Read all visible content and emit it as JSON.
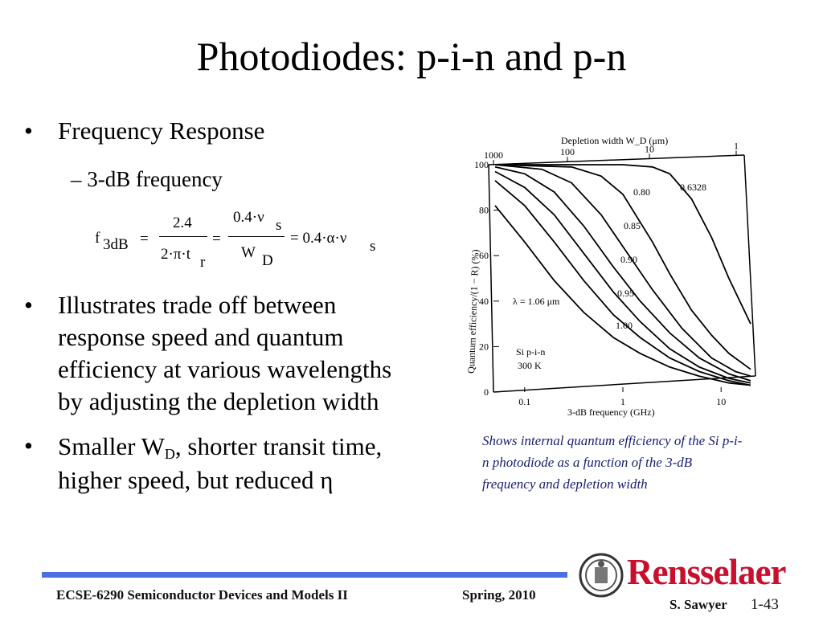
{
  "slide": {
    "title": "Photodiodes: p-i-n and p-n",
    "bullet_symbol": "•",
    "bullet1": "Frequency Response",
    "sub_dash": "–",
    "sub1": "3-dB frequency",
    "bullet2_lines": [
      "Illustrates trade off between",
      "response speed and quantum",
      "efficiency at various wavelengths",
      "by adjusting the depletion width"
    ],
    "bullet3_prefix": "Smaller W",
    "bullet3_sub": "D",
    "bullet3_line1_suffix": ", shorter transit time,",
    "bullet3_line2": "higher speed, but reduced η"
  },
  "equation": {
    "f": "f",
    "f_sub": "3dB",
    "eq1": "=",
    "num1": "2.4",
    "den1": "2·π·t",
    "den1_sub": "r",
    "eq2": "=",
    "num2": "0.4·ν",
    "num2_sub": "s",
    "den2": "W",
    "den2_sub": "D",
    "eq3": "= 0.4·α·ν",
    "eq3_sub": "s"
  },
  "caption": "Shows internal quantum efficiency of the Si p-i-n photodiode as a function of the 3-dB frequency and depletion width",
  "chart_data": {
    "type": "line",
    "xlabel": "3-dB frequency (GHz)",
    "ylabel": "Quantum efficiency/(1 − R) (%)",
    "top_axis_label": "Depletion width W_D (μm)",
    "x_scale": "log",
    "xlim": [
      0.05,
      20
    ],
    "ylim": [
      0,
      100
    ],
    "x_ticks": [
      "0.1",
      "1",
      "10"
    ],
    "y_ticks": [
      "0",
      "20",
      "40",
      "60",
      "80",
      "100"
    ],
    "top_ticks": [
      "1000",
      "100",
      "10",
      "1"
    ],
    "annotations": [
      "λ = 1.06 μm",
      "Si p-i-n",
      "300 K"
    ],
    "series": [
      {
        "name": "0.6328",
        "x": [
          0.05,
          1,
          2,
          3,
          5,
          8,
          12,
          20
        ],
        "y": [
          100,
          100,
          99,
          96,
          85,
          68,
          50,
          30
        ]
      },
      {
        "name": "0.80",
        "x": [
          0.05,
          0.3,
          0.6,
          1,
          2,
          3,
          5,
          8,
          12,
          20
        ],
        "y": [
          100,
          99,
          95,
          87,
          66,
          52,
          36,
          25,
          17,
          10
        ]
      },
      {
        "name": "0.85",
        "x": [
          0.05,
          0.15,
          0.3,
          0.6,
          1,
          2,
          4,
          8,
          14,
          20
        ],
        "y": [
          100,
          98,
          92,
          78,
          64,
          45,
          28,
          15,
          9,
          7
        ]
      },
      {
        "name": "0.90",
        "x": [
          0.05,
          0.1,
          0.2,
          0.4,
          0.8,
          1.5,
          3,
          6,
          12,
          20
        ],
        "y": [
          99,
          96,
          88,
          73,
          55,
          40,
          26,
          15,
          8,
          5
        ]
      },
      {
        "name": "0.95",
        "x": [
          0.05,
          0.1,
          0.2,
          0.4,
          0.8,
          1.5,
          3,
          6,
          12,
          20
        ],
        "y": [
          97,
          90,
          78,
          61,
          44,
          31,
          19,
          11,
          6,
          4
        ]
      },
      {
        "name": "1.00",
        "x": [
          0.05,
          0.1,
          0.2,
          0.4,
          0.8,
          1.5,
          3,
          6,
          12,
          20
        ],
        "y": [
          93,
          82,
          66,
          49,
          34,
          24,
          15,
          9,
          5,
          3
        ]
      },
      {
        "name": "1.06",
        "x": [
          0.05,
          0.1,
          0.2,
          0.4,
          0.8,
          1.5,
          3,
          6,
          12,
          20
        ],
        "y": [
          82,
          66,
          49,
          35,
          24,
          17,
          11,
          7,
          4,
          3
        ]
      }
    ]
  },
  "footer": {
    "course": "ECSE-6290 Semiconductor Devices and Models II",
    "term": "Spring, 2010",
    "author": "S. Sawyer",
    "page": "1-43",
    "brand": "Rensselaer"
  },
  "colors": {
    "footer_rule": "#4a6fe0",
    "brand_red": "#c8102e",
    "caption": "#1a2070"
  }
}
